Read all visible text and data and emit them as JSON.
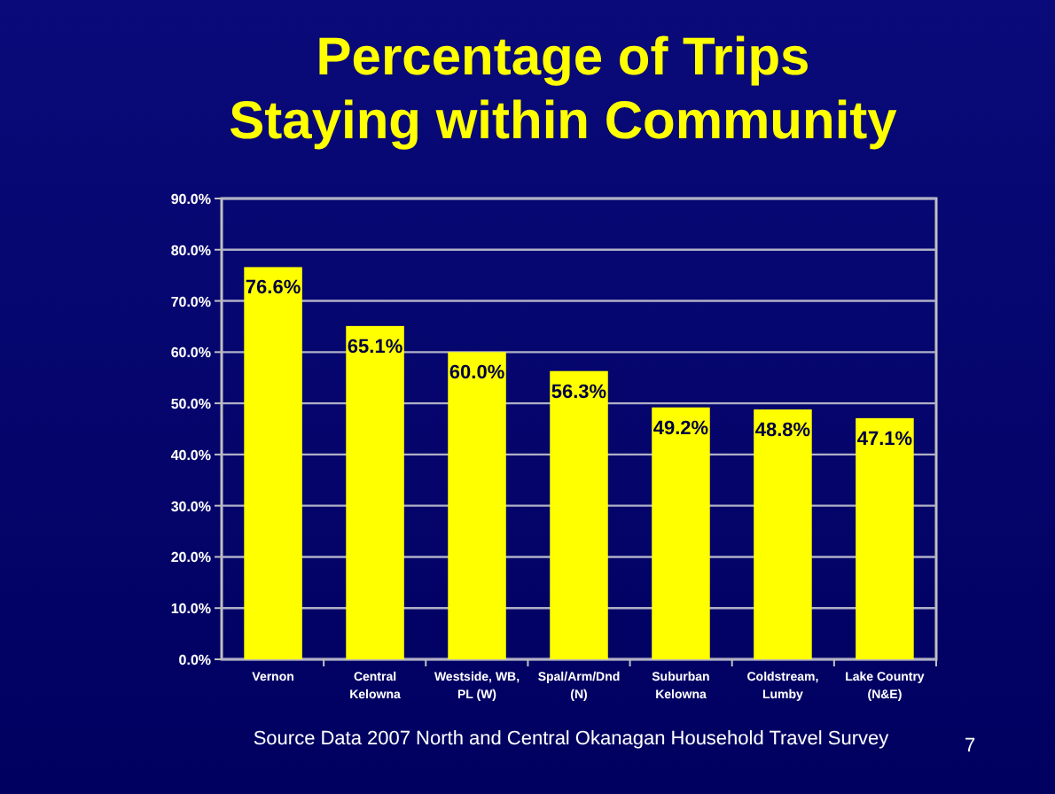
{
  "chart_data": {
    "type": "bar",
    "title": "Percentage of Trips\nStaying within Community",
    "categories": [
      "Vernon",
      "Central Kelowna",
      "Westside, WB, PL (W)",
      "Spal/Arm/Dnd (N)",
      "Suburban Kelowna",
      "Coldstream, Lumby",
      "Lake Country (N&E)"
    ],
    "values": [
      76.6,
      65.1,
      60.0,
      56.3,
      49.2,
      48.8,
      47.1
    ],
    "value_labels": [
      "76.6%",
      "65.1%",
      "60.0%",
      "56.3%",
      "49.2%",
      "48.8%",
      "47.1%"
    ],
    "color": "#ffff00",
    "ylim": [
      0,
      90
    ],
    "yticks": [
      {
        "value": 0,
        "label": "0.0%"
      },
      {
        "value": 10,
        "label": "10.0%"
      },
      {
        "value": 20,
        "label": "20.0%"
      },
      {
        "value": 30,
        "label": "30.0%"
      },
      {
        "value": 40,
        "label": "40.0%"
      },
      {
        "value": 50,
        "label": "50.0%"
      },
      {
        "value": 60,
        "label": "60.0%"
      },
      {
        "value": 70,
        "label": "70.0%"
      },
      {
        "value": 80,
        "label": "80.0%"
      },
      {
        "value": 90,
        "label": "90.0%"
      }
    ],
    "grid": "y",
    "annotations": [
      "Source Data  2007 North and Central Okanagan Household Travel Survey",
      "7"
    ]
  }
}
